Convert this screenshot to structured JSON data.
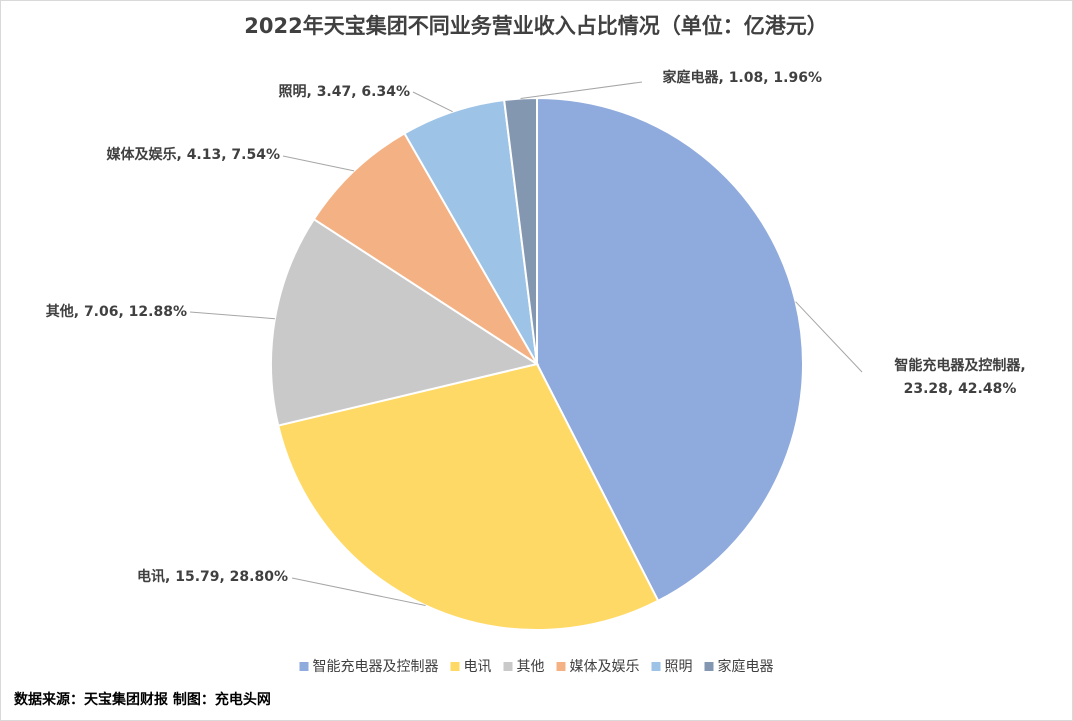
{
  "chart_data": {
    "type": "pie",
    "title": "2022年天宝集团不同业务营业收入占比情况（单位：亿港元）",
    "categories": [
      "智能充电器及控制器",
      "电讯",
      "其他",
      "媒体及娱乐",
      "照明",
      "家庭电器"
    ],
    "values": [
      23.28,
      15.79,
      7.06,
      4.13,
      3.47,
      1.08
    ],
    "value_labels": [
      "智能充电器及控制器, 23.28, 42.48%",
      "电讯, 15.79, 28.80%",
      "其他, 7.06, 12.88%",
      "媒体及娱乐, 4.13, 7.54%",
      "照明, 3.47, 6.34%",
      "家庭电器, 1.08, 1.96%"
    ],
    "colors": [
      "#8faadc",
      "#ffd966",
      "#c9c9c9",
      "#f4b183",
      "#9dc3e6",
      "#8497b0"
    ],
    "legend": "bottom",
    "source": "数据来源：天宝集团财报  制图：充电头网"
  }
}
